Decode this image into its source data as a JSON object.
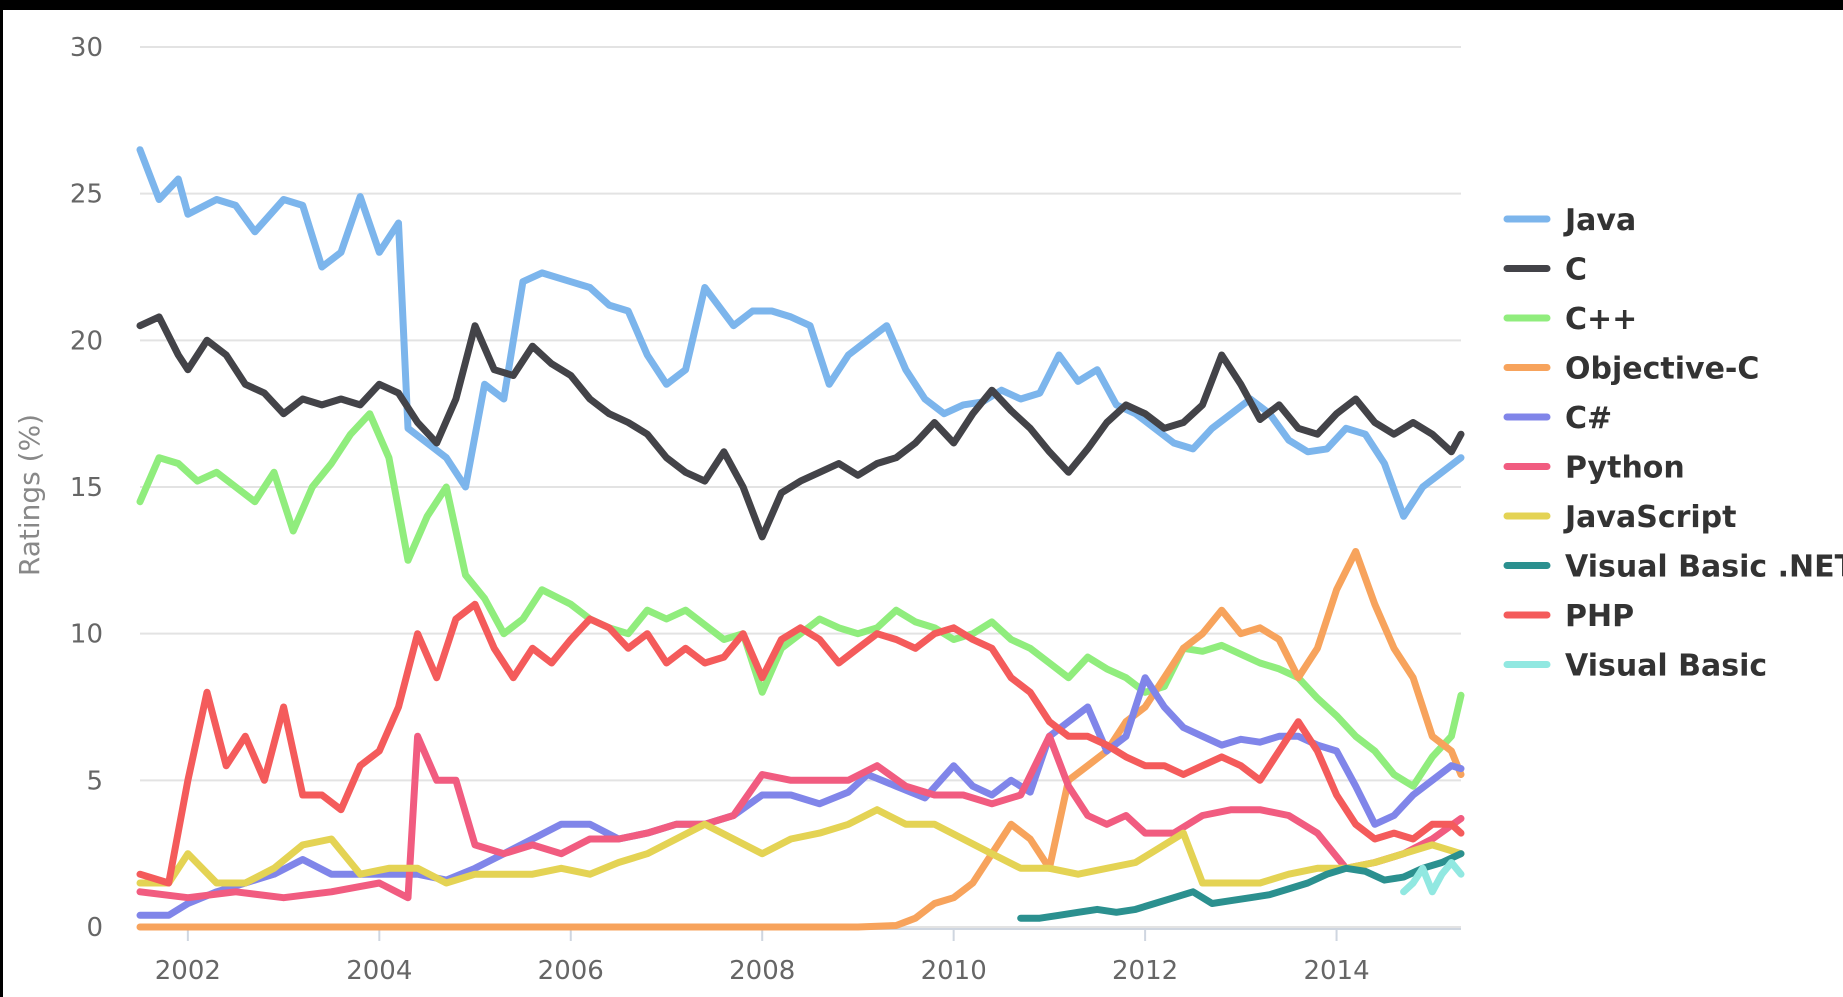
{
  "chart_data": {
    "type": "line",
    "title": "",
    "xlabel": "",
    "ylabel": "Ratings (%)",
    "ylim": [
      0,
      30
    ],
    "xlim": [
      2001.5,
      2015.3
    ],
    "yticks": [
      "0",
      "5",
      "10",
      "15",
      "20",
      "25",
      "30"
    ],
    "xticks": [
      "2002",
      "2004",
      "2006",
      "2008",
      "2010",
      "2012",
      "2014"
    ],
    "grid": "horizontal",
    "legend_position": "right",
    "series": [
      {
        "name": "Java",
        "color": "#7cb5ec",
        "x": [
          2001.5,
          2001.7,
          2001.9,
          2002.0,
          2002.3,
          2002.5,
          2002.7,
          2003.0,
          2003.2,
          2003.4,
          2003.6,
          2003.8,
          2004.0,
          2004.2,
          2004.3,
          2004.5,
          2004.7,
          2004.9,
          2005.1,
          2005.3,
          2005.5,
          2005.7,
          2006.0,
          2006.2,
          2006.4,
          2006.6,
          2006.8,
          2007.0,
          2007.2,
          2007.4,
          2007.7,
          2007.9,
          2008.1,
          2008.3,
          2008.5,
          2008.7,
          2008.9,
          2009.1,
          2009.3,
          2009.5,
          2009.7,
          2009.9,
          2010.1,
          2010.3,
          2010.5,
          2010.7,
          2010.9,
          2011.1,
          2011.3,
          2011.5,
          2011.7,
          2011.9,
          2012.1,
          2012.3,
          2012.5,
          2012.7,
          2012.9,
          2013.1,
          2013.3,
          2013.5,
          2013.7,
          2013.9,
          2014.1,
          2014.3,
          2014.5,
          2014.7,
          2014.9,
          2015.1,
          2015.3
        ],
        "values": [
          26.5,
          24.8,
          25.5,
          24.3,
          24.8,
          24.6,
          23.7,
          24.8,
          24.6,
          22.5,
          23.0,
          24.9,
          23.0,
          24.0,
          17.0,
          16.5,
          16.0,
          15.0,
          18.5,
          18.0,
          22.0,
          22.3,
          22.0,
          21.8,
          21.2,
          21.0,
          19.5,
          18.5,
          19.0,
          21.8,
          20.5,
          21.0,
          21.0,
          20.8,
          20.5,
          18.5,
          19.5,
          20.0,
          20.5,
          19.0,
          18.0,
          17.5,
          17.8,
          17.9,
          18.3,
          18.0,
          18.2,
          19.5,
          18.6,
          19.0,
          17.8,
          17.5,
          17.0,
          16.5,
          16.3,
          17.0,
          17.5,
          18.0,
          17.5,
          16.6,
          16.2,
          16.3,
          17.0,
          16.8,
          15.8,
          14.0,
          15.0,
          15.5,
          16.0
        ]
      },
      {
        "name": "C",
        "color": "#434348",
        "x": [
          2001.5,
          2001.7,
          2001.9,
          2002.0,
          2002.2,
          2002.4,
          2002.6,
          2002.8,
          2003.0,
          2003.2,
          2003.4,
          2003.6,
          2003.8,
          2004.0,
          2004.2,
          2004.4,
          2004.6,
          2004.8,
          2005.0,
          2005.2,
          2005.4,
          2005.6,
          2005.8,
          2006.0,
          2006.2,
          2006.4,
          2006.6,
          2006.8,
          2007.0,
          2007.2,
          2007.4,
          2007.6,
          2007.8,
          2008.0,
          2008.2,
          2008.4,
          2008.6,
          2008.8,
          2009.0,
          2009.2,
          2009.4,
          2009.6,
          2009.8,
          2010.0,
          2010.2,
          2010.4,
          2010.6,
          2010.8,
          2011.0,
          2011.2,
          2011.4,
          2011.6,
          2011.8,
          2012.0,
          2012.2,
          2012.4,
          2012.6,
          2012.8,
          2013.0,
          2013.2,
          2013.4,
          2013.6,
          2013.8,
          2014.0,
          2014.2,
          2014.4,
          2014.6,
          2014.8,
          2015.0,
          2015.2,
          2015.3
        ],
        "values": [
          20.5,
          20.8,
          19.5,
          19.0,
          20.0,
          19.5,
          18.5,
          18.2,
          17.5,
          18.0,
          17.8,
          18.0,
          17.8,
          18.5,
          18.2,
          17.2,
          16.5,
          18.0,
          20.5,
          19.0,
          18.8,
          19.8,
          19.2,
          18.8,
          18.0,
          17.5,
          17.2,
          16.8,
          16.0,
          15.5,
          15.2,
          16.2,
          15.0,
          13.3,
          14.8,
          15.2,
          15.5,
          15.8,
          15.4,
          15.8,
          16.0,
          16.5,
          17.2,
          16.5,
          17.5,
          18.3,
          17.6,
          17.0,
          16.2,
          15.5,
          16.3,
          17.2,
          17.8,
          17.5,
          17.0,
          17.2,
          17.8,
          19.5,
          18.5,
          17.3,
          17.8,
          17.0,
          16.8,
          17.5,
          18.0,
          17.2,
          16.8,
          17.2,
          16.8,
          16.2,
          16.8
        ]
      },
      {
        "name": "C++",
        "color": "#90ed7d",
        "x": [
          2001.5,
          2001.7,
          2001.9,
          2002.1,
          2002.3,
          2002.5,
          2002.7,
          2002.9,
          2003.1,
          2003.3,
          2003.5,
          2003.7,
          2003.9,
          2004.1,
          2004.3,
          2004.5,
          2004.7,
          2004.9,
          2005.1,
          2005.3,
          2005.5,
          2005.7,
          2006.0,
          2006.2,
          2006.4,
          2006.6,
          2006.8,
          2007.0,
          2007.2,
          2007.4,
          2007.6,
          2007.8,
          2008.0,
          2008.2,
          2008.4,
          2008.6,
          2008.8,
          2009.0,
          2009.2,
          2009.4,
          2009.6,
          2009.8,
          2010.0,
          2010.2,
          2010.4,
          2010.6,
          2010.8,
          2011.0,
          2011.2,
          2011.4,
          2011.6,
          2011.8,
          2012.0,
          2012.2,
          2012.4,
          2012.6,
          2012.8,
          2013.0,
          2013.2,
          2013.4,
          2013.6,
          2013.8,
          2014.0,
          2014.2,
          2014.4,
          2014.6,
          2014.8,
          2015.0,
          2015.2,
          2015.3
        ],
        "values": [
          14.5,
          16.0,
          15.8,
          15.2,
          15.5,
          15.0,
          14.5,
          15.5,
          13.5,
          15.0,
          15.8,
          16.8,
          17.5,
          16.0,
          12.5,
          14.0,
          15.0,
          12.0,
          11.2,
          10.0,
          10.5,
          11.5,
          11.0,
          10.5,
          10.2,
          10.0,
          10.8,
          10.5,
          10.8,
          10.3,
          9.8,
          10.0,
          8.0,
          9.5,
          10.0,
          10.5,
          10.2,
          10.0,
          10.2,
          10.8,
          10.4,
          10.2,
          9.8,
          10.0,
          10.4,
          9.8,
          9.5,
          9.0,
          8.5,
          9.2,
          8.8,
          8.5,
          8.0,
          8.2,
          9.5,
          9.4,
          9.6,
          9.3,
          9.0,
          8.8,
          8.5,
          7.8,
          7.2,
          6.5,
          6.0,
          5.2,
          4.8,
          5.8,
          6.5,
          7.9
        ]
      },
      {
        "name": "Objective-C",
        "color": "#f7a35c",
        "x": [
          2001.5,
          2002.0,
          2004.0,
          2006.0,
          2008.0,
          2009.0,
          2009.4,
          2009.6,
          2009.8,
          2010.0,
          2010.2,
          2010.4,
          2010.6,
          2010.8,
          2011.0,
          2011.2,
          2011.4,
          2011.6,
          2011.8,
          2012.0,
          2012.2,
          2012.4,
          2012.6,
          2012.8,
          2013.0,
          2013.2,
          2013.4,
          2013.6,
          2013.8,
          2014.0,
          2014.2,
          2014.4,
          2014.6,
          2014.8,
          2015.0,
          2015.2,
          2015.3
        ],
        "values": [
          0.0,
          0.0,
          0.0,
          0.0,
          0.0,
          0.0,
          0.05,
          0.3,
          0.8,
          1.0,
          1.5,
          2.5,
          3.5,
          3.0,
          2.0,
          5.0,
          5.5,
          6.0,
          7.0,
          7.5,
          8.5,
          9.5,
          10.0,
          10.8,
          10.0,
          10.2,
          9.8,
          8.5,
          9.5,
          11.5,
          12.8,
          11.0,
          9.5,
          8.5,
          6.5,
          6.0,
          5.2
        ]
      },
      {
        "name": "C#",
        "color": "#8085e9",
        "x": [
          2001.5,
          2001.8,
          2002.0,
          2002.3,
          2002.6,
          2002.9,
          2003.2,
          2003.5,
          2003.8,
          2004.1,
          2004.4,
          2004.7,
          2005.0,
          2005.3,
          2005.6,
          2005.9,
          2006.2,
          2006.5,
          2006.8,
          2007.1,
          2007.4,
          2007.7,
          2008.0,
          2008.3,
          2008.6,
          2008.9,
          2009.1,
          2009.4,
          2009.7,
          2010.0,
          2010.2,
          2010.4,
          2010.6,
          2010.8,
          2011.0,
          2011.2,
          2011.4,
          2011.6,
          2011.8,
          2012.0,
          2012.2,
          2012.4,
          2012.6,
          2012.8,
          2013.0,
          2013.2,
          2013.4,
          2013.6,
          2013.8,
          2014.0,
          2014.2,
          2014.4,
          2014.6,
          2014.8,
          2015.0,
          2015.2,
          2015.3
        ],
        "values": [
          0.4,
          0.4,
          0.8,
          1.2,
          1.5,
          1.8,
          2.3,
          1.8,
          1.8,
          1.8,
          1.8,
          1.6,
          2.0,
          2.5,
          3.0,
          3.5,
          3.5,
          3.0,
          3.2,
          3.5,
          3.5,
          3.8,
          4.5,
          4.5,
          4.2,
          4.6,
          5.2,
          4.8,
          4.4,
          5.5,
          4.8,
          4.5,
          5.0,
          4.6,
          6.5,
          7.0,
          7.5,
          6.0,
          6.5,
          8.5,
          7.5,
          6.8,
          6.5,
          6.2,
          6.4,
          6.3,
          6.5,
          6.5,
          6.2,
          6.0,
          4.8,
          3.5,
          3.8,
          4.5,
          5.0,
          5.5,
          5.4
        ]
      },
      {
        "name": "Python",
        "color": "#f15c80",
        "x": [
          2001.5,
          2002.0,
          2002.5,
          2003.0,
          2003.5,
          2004.0,
          2004.3,
          2004.4,
          2004.6,
          2004.8,
          2005.0,
          2005.3,
          2005.6,
          2005.9,
          2006.2,
          2006.5,
          2006.8,
          2007.1,
          2007.4,
          2007.7,
          2008.0,
          2008.3,
          2008.6,
          2008.9,
          2009.2,
          2009.5,
          2009.8,
          2010.1,
          2010.4,
          2010.7,
          2011.0,
          2011.2,
          2011.4,
          2011.6,
          2011.8,
          2012.0,
          2012.3,
          2012.6,
          2012.9,
          2013.2,
          2013.5,
          2013.8,
          2014.1,
          2014.4,
          2014.7,
          2015.0,
          2015.3
        ],
        "values": [
          1.2,
          1.0,
          1.2,
          1.0,
          1.2,
          1.5,
          1.0,
          6.5,
          5.0,
          5.0,
          2.8,
          2.5,
          2.8,
          2.5,
          3.0,
          3.0,
          3.2,
          3.5,
          3.5,
          3.8,
          5.2,
          5.0,
          5.0,
          5.0,
          5.5,
          4.8,
          4.5,
          4.5,
          4.2,
          4.5,
          6.5,
          4.8,
          3.8,
          3.5,
          3.8,
          3.2,
          3.2,
          3.8,
          4.0,
          4.0,
          3.8,
          3.2,
          2.0,
          2.2,
          2.5,
          3.0,
          3.7
        ]
      },
      {
        "name": "JavaScript",
        "color": "#e4d354",
        "x": [
          2001.5,
          2001.8,
          2002.0,
          2002.3,
          2002.6,
          2002.9,
          2003.2,
          2003.5,
          2003.8,
          2004.1,
          2004.4,
          2004.7,
          2005.0,
          2005.3,
          2005.6,
          2005.9,
          2006.2,
          2006.5,
          2006.8,
          2007.1,
          2007.4,
          2007.7,
          2008.0,
          2008.3,
          2008.6,
          2008.9,
          2009.2,
          2009.5,
          2009.8,
          2010.1,
          2010.4,
          2010.7,
          2011.0,
          2011.3,
          2011.6,
          2011.9,
          2012.2,
          2012.4,
          2012.6,
          2012.9,
          2013.2,
          2013.5,
          2013.8,
          2014.1,
          2014.4,
          2014.7,
          2015.0,
          2015.3
        ],
        "values": [
          1.5,
          1.5,
          2.5,
          1.5,
          1.5,
          2.0,
          2.8,
          3.0,
          1.8,
          2.0,
          2.0,
          1.5,
          1.8,
          1.8,
          1.8,
          2.0,
          1.8,
          2.2,
          2.5,
          3.0,
          3.5,
          3.0,
          2.5,
          3.0,
          3.2,
          3.5,
          4.0,
          3.5,
          3.5,
          3.0,
          2.5,
          2.0,
          2.0,
          1.8,
          2.0,
          2.2,
          2.8,
          3.2,
          1.5,
          1.5,
          1.5,
          1.8,
          2.0,
          2.0,
          2.2,
          2.5,
          2.8,
          2.5
        ]
      },
      {
        "name": "Visual Basic .NET",
        "color": "#2b908f",
        "x": [
          2010.7,
          2010.9,
          2011.1,
          2011.3,
          2011.5,
          2011.7,
          2011.9,
          2012.1,
          2012.3,
          2012.5,
          2012.7,
          2012.9,
          2013.1,
          2013.3,
          2013.5,
          2013.7,
          2013.9,
          2014.1,
          2014.3,
          2014.5,
          2014.7,
          2014.9,
          2015.1,
          2015.3
        ],
        "values": [
          0.3,
          0.3,
          0.4,
          0.5,
          0.6,
          0.5,
          0.6,
          0.8,
          1.0,
          1.2,
          0.8,
          0.9,
          1.0,
          1.1,
          1.3,
          1.5,
          1.8,
          2.0,
          1.9,
          1.6,
          1.7,
          2.0,
          2.2,
          2.5
        ]
      },
      {
        "name": "PHP",
        "color": "#f45b5b",
        "x": [
          2001.5,
          2001.8,
          2002.0,
          2002.2,
          2002.4,
          2002.6,
          2002.8,
          2003.0,
          2003.2,
          2003.4,
          2003.6,
          2003.8,
          2004.0,
          2004.2,
          2004.4,
          2004.6,
          2004.8,
          2005.0,
          2005.2,
          2005.4,
          2005.6,
          2005.8,
          2006.0,
          2006.2,
          2006.4,
          2006.6,
          2006.8,
          2007.0,
          2007.2,
          2007.4,
          2007.6,
          2007.8,
          2008.0,
          2008.2,
          2008.4,
          2008.6,
          2008.8,
          2009.0,
          2009.2,
          2009.4,
          2009.6,
          2009.8,
          2010.0,
          2010.2,
          2010.4,
          2010.6,
          2010.8,
          2011.0,
          2011.2,
          2011.4,
          2011.6,
          2011.8,
          2012.0,
          2012.2,
          2012.4,
          2012.6,
          2012.8,
          2013.0,
          2013.2,
          2013.4,
          2013.6,
          2013.8,
          2014.0,
          2014.2,
          2014.4,
          2014.6,
          2014.8,
          2015.0,
          2015.2,
          2015.3
        ],
        "values": [
          1.8,
          1.5,
          5.0,
          8.0,
          5.5,
          6.5,
          5.0,
          7.5,
          4.5,
          4.5,
          4.0,
          5.5,
          6.0,
          7.5,
          10.0,
          8.5,
          10.5,
          11.0,
          9.5,
          8.5,
          9.5,
          9.0,
          9.8,
          10.5,
          10.2,
          9.5,
          10.0,
          9.0,
          9.5,
          9.0,
          9.2,
          10.0,
          8.5,
          9.8,
          10.2,
          9.8,
          9.0,
          9.5,
          10.0,
          9.8,
          9.5,
          10.0,
          10.2,
          9.8,
          9.5,
          8.5,
          8.0,
          7.0,
          6.5,
          6.5,
          6.2,
          5.8,
          5.5,
          5.5,
          5.2,
          5.5,
          5.8,
          5.5,
          5.0,
          6.0,
          7.0,
          6.0,
          4.5,
          3.5,
          3.0,
          3.2,
          3.0,
          3.5,
          3.5,
          3.2
        ]
      },
      {
        "name": "Visual Basic",
        "color": "#91e8e1",
        "x": [
          2014.7,
          2014.8,
          2014.9,
          2015.0,
          2015.1,
          2015.2,
          2015.3
        ],
        "values": [
          1.2,
          1.5,
          2.0,
          1.2,
          1.8,
          2.2,
          1.8
        ]
      }
    ]
  }
}
